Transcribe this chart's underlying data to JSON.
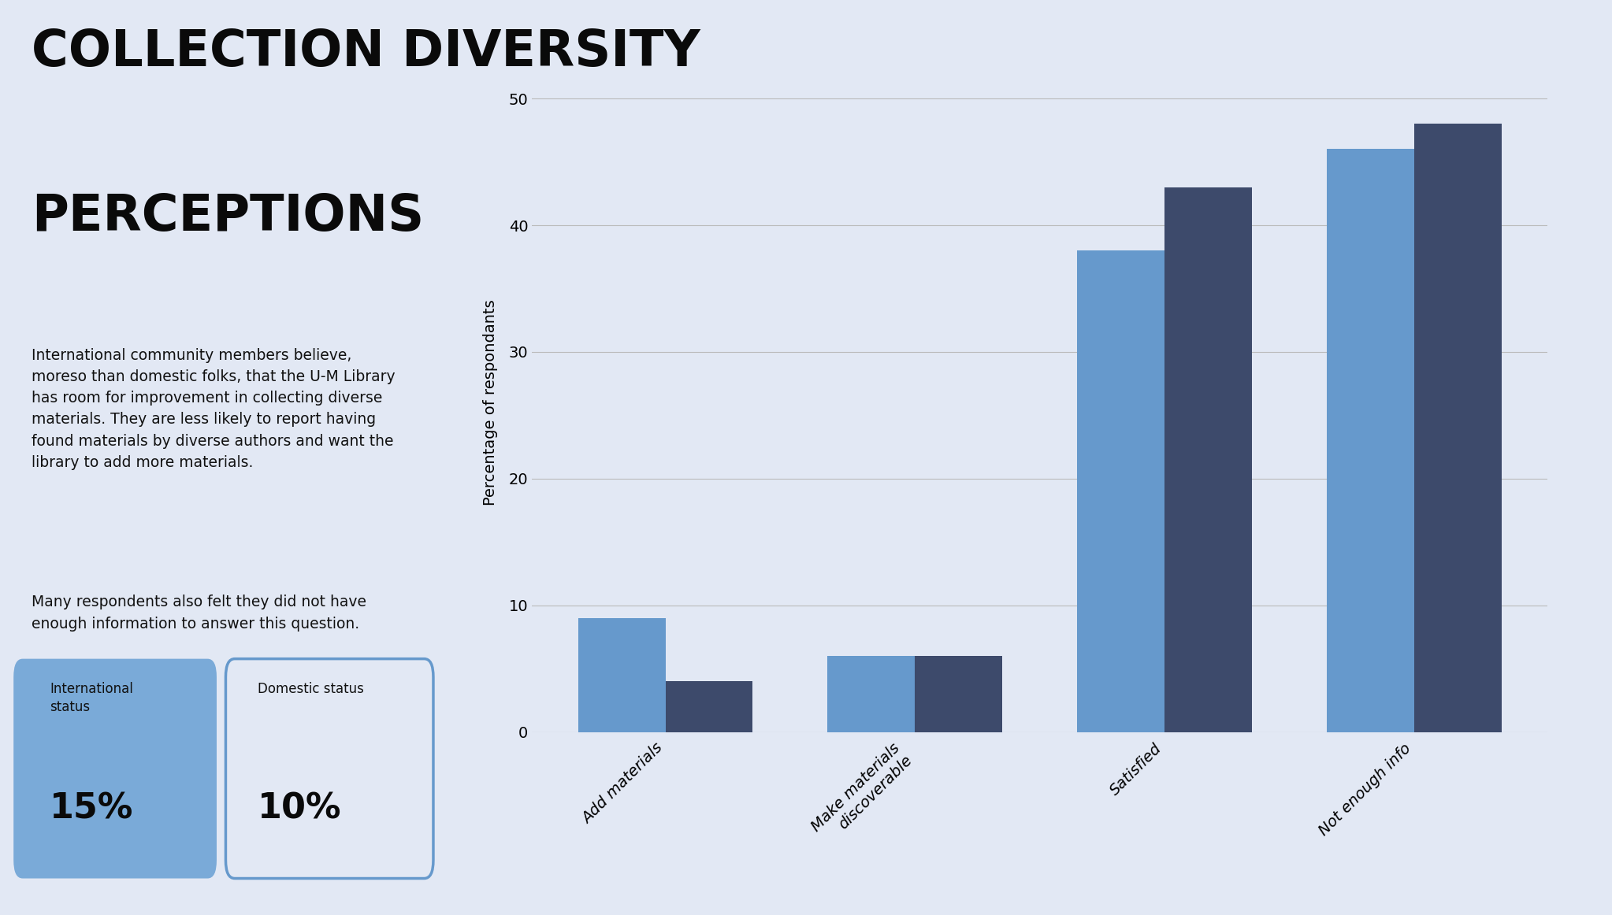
{
  "title_line1": "COLLECTION DIVERSITY",
  "title_line2": "PERCEPTIONS",
  "description1": "International community members believe,\nmoreso than domestic folks, that the U-M Library\nhas room for improvement in collecting diverse\nmaterials. They are less likely to report having\nfound materials by diverse authors and want the\nlibrary to add more materials.",
  "description2": "Many respondents also felt they did not have\nenough information to answer this question.",
  "stat1_label": "International\nstatus",
  "stat1_value": "15%",
  "stat2_label": "Domestic status",
  "stat2_value": "10%",
  "categories": [
    "Add materials",
    "Make materials\ndiscoverable",
    "Satisfied",
    "Not enough info"
  ],
  "international_values": [
    9,
    6,
    38,
    46
  ],
  "domestic_values": [
    4,
    6,
    43,
    48
  ],
  "ylabel": "Percentage of respondants",
  "ylim": [
    0,
    52
  ],
  "yticks": [
    0,
    10,
    20,
    30,
    40,
    50
  ],
  "bar_color_international": "#6699CC",
  "bar_color_domestic": "#3D4A6B",
  "background_color": "#E2E8F4",
  "legend_international": "International status",
  "legend_domestic": "Domestic status",
  "stat1_bg": "#7AAAD8",
  "stat2_bg": "#E2E8F4",
  "stat2_border": "#6699CC"
}
